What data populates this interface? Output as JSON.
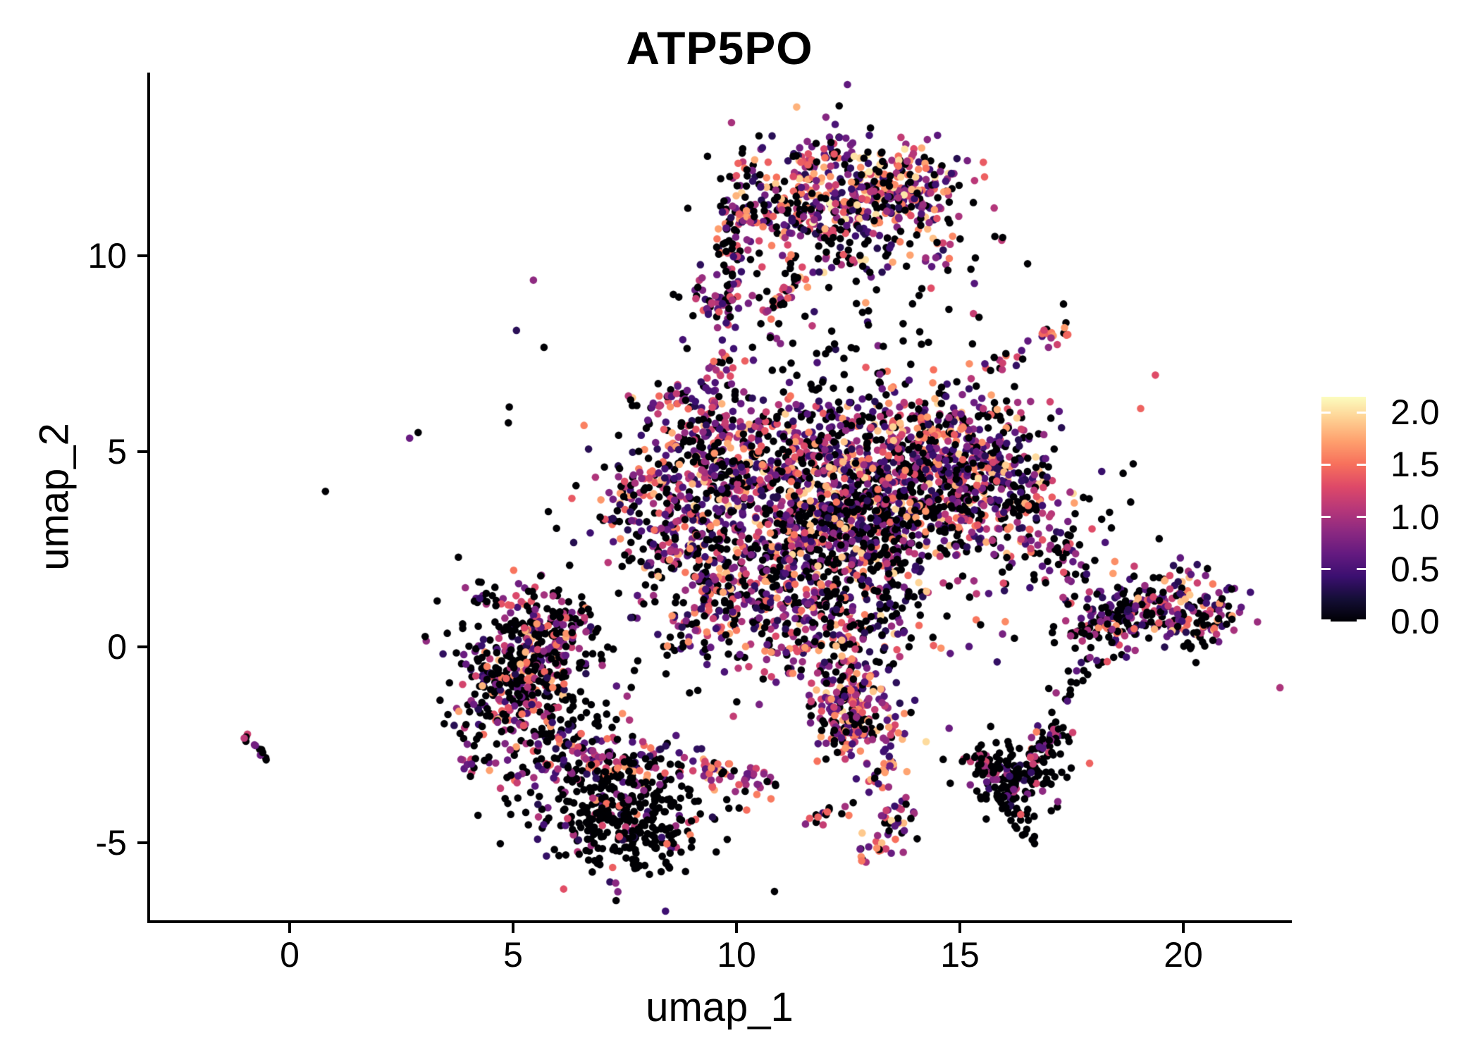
{
  "title": "ATP5PO",
  "axes": {
    "x": {
      "label": "umap_1",
      "ticks": [
        {
          "value": 0,
          "label": "0"
        },
        {
          "value": 5,
          "label": "5"
        },
        {
          "value": 10,
          "label": "10"
        },
        {
          "value": 15,
          "label": "15"
        },
        {
          "value": 20,
          "label": "20"
        }
      ]
    },
    "y": {
      "label": "umap_2",
      "ticks": [
        {
          "value": 10,
          "label": "10"
        },
        {
          "value": 5,
          "label": "5"
        },
        {
          "value": 0,
          "label": "0"
        },
        {
          "value": -5,
          "label": "-5"
        }
      ]
    }
  },
  "colorbar": {
    "vmin": 0,
    "vmax": 2.15,
    "ticks": [
      {
        "value": 2.0,
        "label": "2.0"
      },
      {
        "value": 1.5,
        "label": "1.5"
      },
      {
        "value": 1.0,
        "label": "1.0"
      },
      {
        "value": 0.5,
        "label": "0.5"
      },
      {
        "value": 0.0,
        "label": "0.0"
      }
    ],
    "stops": [
      "#000004",
      "#140e36",
      "#3b0f70",
      "#641a80",
      "#8c2981",
      "#b73779",
      "#de4968",
      "#f7705c",
      "#fe9f6d",
      "#fecf92",
      "#fcfdbf"
    ]
  },
  "chart_data": {
    "type": "scatter",
    "title": "ATP5PO",
    "xlabel": "umap_1",
    "ylabel": "umap_2",
    "xlim": [
      -3.15,
      22.4
    ],
    "ylim": [
      -6.9,
      14.6
    ],
    "grid": false,
    "legend_position": "right-colorbar",
    "point_radius_px": 5.3,
    "color_scale": {
      "name": "magma",
      "domain": [
        0,
        2.15
      ]
    },
    "note": "UMAP feature plot; each point is a cell colored by ATP5PO expression (0=black, 2.15=pale yellow). Clusters given as generative parameters.",
    "clusters": {
      "blobs": [
        [
          12.4,
          11.4,
          1.15,
          0.85,
          -10,
          420,
          0.3,
          0.3,
          2.1
        ],
        [
          13.9,
          11.8,
          0.65,
          0.55,
          0,
          110,
          0.25,
          0.4,
          2.1
        ],
        [
          9.55,
          8.95,
          0.3,
          0.4,
          0,
          55,
          0.2,
          0.4,
          1.4
        ],
        [
          12.15,
          12.75,
          0.18,
          0.3,
          0,
          12,
          0.3,
          0.5,
          1.3
        ],
        [
          11.45,
          12.4,
          0.16,
          0.14,
          0,
          8,
          0.15,
          1.2,
          1.9
        ],
        [
          12.3,
          10.1,
          1.9,
          1.3,
          0,
          70,
          0.65,
          0.3,
          1.6
        ],
        [
          12.6,
          7.0,
          1.4,
          0.7,
          0,
          45,
          0.7,
          0.3,
          1.5
        ],
        [
          14.9,
          4.3,
          1.05,
          0.95,
          0,
          520,
          0.3,
          0.3,
          2.0
        ],
        [
          14.0,
          5.6,
          1.3,
          0.55,
          0,
          200,
          0.3,
          0.3,
          2.0
        ],
        [
          12.0,
          2.7,
          1.35,
          1.25,
          0,
          600,
          0.38,
          0.3,
          2.0
        ],
        [
          11.2,
          4.7,
          1.15,
          0.85,
          0,
          320,
          0.32,
          0.3,
          2.0
        ],
        [
          9.4,
          4.7,
          0.85,
          0.85,
          0,
          260,
          0.34,
          0.3,
          1.9
        ],
        [
          8.75,
          2.9,
          0.65,
          0.9,
          0,
          150,
          0.35,
          0.3,
          1.9
        ],
        [
          9.9,
          1.0,
          0.95,
          0.95,
          0,
          200,
          0.38,
          0.3,
          1.9
        ],
        [
          11.9,
          0.3,
          1.0,
          0.75,
          0,
          180,
          0.38,
          0.3,
          1.9
        ],
        [
          13.0,
          3.4,
          0.85,
          0.65,
          15,
          200,
          0.72,
          0.3,
          1.5
        ],
        [
          16.3,
          3.2,
          0.45,
          0.85,
          0,
          80,
          0.45,
          0.3,
          1.8
        ],
        [
          12.2,
          3.2,
          2.7,
          2.0,
          0,
          220,
          0.5,
          0.3,
          1.9
        ],
        [
          5.15,
          -0.55,
          0.7,
          0.85,
          -20,
          340,
          0.5,
          0.3,
          1.9
        ],
        [
          5.95,
          0.55,
          0.55,
          0.45,
          -30,
          110,
          0.45,
          0.3,
          1.8
        ],
        [
          5.9,
          -1.9,
          1.1,
          0.8,
          0,
          130,
          0.55,
          0.3,
          1.7
        ],
        [
          4.15,
          -2.95,
          0.22,
          0.16,
          0,
          12,
          0.35,
          0.6,
          1.3
        ],
        [
          4.4,
          1.35,
          0.3,
          0.25,
          0,
          14,
          0.5,
          0.4,
          1.2
        ],
        [
          7.5,
          -4.4,
          0.95,
          0.75,
          0,
          360,
          0.8,
          0.3,
          1.6
        ],
        [
          7.2,
          -3.05,
          1.05,
          0.4,
          0,
          140,
          0.42,
          0.3,
          1.8
        ],
        [
          5.1,
          -3.25,
          0.25,
          0.15,
          0,
          10,
          0.4,
          0.6,
          1.3
        ],
        [
          12.65,
          -1.9,
          0.55,
          0.5,
          0,
          140,
          0.25,
          0.4,
          2.0
        ],
        [
          13.1,
          -5.2,
          0.35,
          0.2,
          0,
          18,
          0.3,
          0.6,
          1.9
        ],
        [
          16.2,
          -3.2,
          0.5,
          0.5,
          0,
          130,
          0.72,
          0.3,
          1.5
        ],
        [
          19.5,
          0.95,
          0.85,
          0.5,
          10,
          240,
          0.42,
          0.3,
          1.9
        ],
        [
          17.4,
          2.2,
          0.4,
          0.35,
          0,
          40,
          0.45,
          0.4,
          1.7
        ],
        [
          20.3,
          0.5,
          0.3,
          0.4,
          0,
          30,
          0.5,
          0.3,
          1.6
        ],
        [
          11.5,
          2.5,
          4.8,
          3.6,
          0,
          70,
          0.7,
          0.3,
          1.5
        ],
        [
          12.0,
          9.0,
          2.5,
          1.2,
          0,
          25,
          0.75,
          0.3,
          1.3
        ]
      ],
      "lines": [
        [
          9.9,
          10.85,
          11.7,
          11.15,
          0.22,
          60,
          0.35,
          0.3,
          1.8
        ],
        [
          9.75,
          9.7,
          10.2,
          12.3,
          0.18,
          55,
          0.3,
          0.3,
          1.9
        ],
        [
          10.75,
          8.6,
          11.5,
          9.55,
          0.12,
          30,
          0.15,
          0.8,
          2.1
        ],
        [
          15.5,
          7.15,
          17.35,
          8.1,
          0.18,
          30,
          0.3,
          0.5,
          1.7
        ],
        [
          9.25,
          6.0,
          9.8,
          7.5,
          0.15,
          30,
          0.35,
          0.4,
          1.6
        ],
        [
          8.0,
          5.9,
          8.9,
          6.6,
          0.15,
          25,
          0.3,
          0.5,
          1.7
        ],
        [
          7.0,
          3.0,
          7.9,
          4.4,
          0.3,
          40,
          0.4,
          0.3,
          1.7
        ],
        [
          11.95,
          -0.6,
          12.65,
          -2.1,
          0.3,
          80,
          0.3,
          0.4,
          2.0
        ],
        [
          9.0,
          -3.05,
          10.75,
          -3.5,
          0.16,
          50,
          0.25,
          0.5,
          1.9
        ],
        [
          13.35,
          -2.6,
          13.55,
          -4.9,
          0.25,
          55,
          0.3,
          0.4,
          2.0
        ],
        [
          11.6,
          -4.4,
          12.6,
          -4.1,
          0.15,
          15,
          0.4,
          0.4,
          1.6
        ],
        [
          16.55,
          -2.85,
          17.35,
          -2.1,
          0.15,
          28,
          0.5,
          0.4,
          1.6
        ],
        [
          16.0,
          -3.75,
          16.6,
          -4.85,
          0.18,
          40,
          0.8,
          0.3,
          1.4
        ],
        [
          15.15,
          -2.9,
          15.9,
          -3.1,
          0.14,
          28,
          0.55,
          0.4,
          1.5
        ],
        [
          17.6,
          0.35,
          18.75,
          0.95,
          0.2,
          55,
          0.5,
          0.3,
          1.7
        ],
        [
          16.85,
          -2.6,
          17.9,
          -0.1,
          0.12,
          30,
          0.85,
          0.3,
          1.2
        ],
        [
          -0.95,
          -2.35,
          -0.55,
          -2.8,
          0.07,
          12,
          0.45,
          0.6,
          1.6
        ]
      ]
    }
  }
}
